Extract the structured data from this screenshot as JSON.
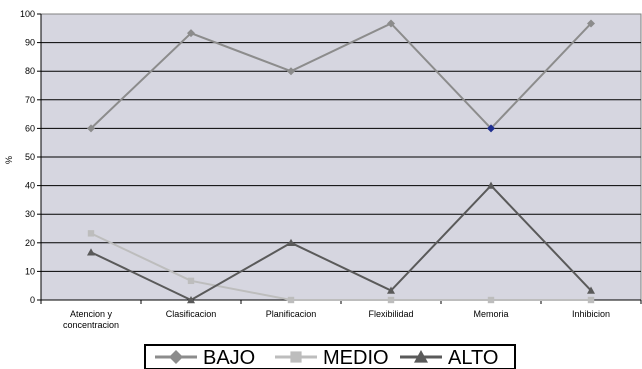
{
  "chart_data": {
    "type": "line",
    "ylabel": "%",
    "xlabel": "",
    "title": "",
    "ylim": [
      0,
      100
    ],
    "yticks": [
      0,
      10,
      20,
      30,
      40,
      50,
      60,
      70,
      80,
      90,
      100
    ],
    "grid": true,
    "legend_position": "bottom",
    "categories": [
      [
        "Atencion y",
        "concentracion"
      ],
      [
        "Clasificacion"
      ],
      [
        "Planificacion"
      ],
      [
        "Flexibilidad"
      ],
      [
        "Memoria"
      ],
      [
        "Inhibicion"
      ]
    ],
    "series": [
      {
        "name": "BAJO",
        "values": [
          60,
          93.3,
          80,
          96.7,
          60,
          96.7
        ],
        "marker": "diamond",
        "color": "#8c8c8c"
      },
      {
        "name": "MEDIO",
        "values": [
          23.3,
          6.7,
          0,
          0,
          0,
          0
        ],
        "marker": "square",
        "color": "#bdbdbd"
      },
      {
        "name": "ALTO",
        "values": [
          16.7,
          0,
          20,
          3.3,
          40,
          3.3
        ],
        "marker": "triangle",
        "color": "#5a5a5a"
      }
    ],
    "highlight": {
      "series": "BAJO",
      "index": 4,
      "color": "#1f2f8f"
    },
    "plot_bg": "#d6d6e0"
  }
}
